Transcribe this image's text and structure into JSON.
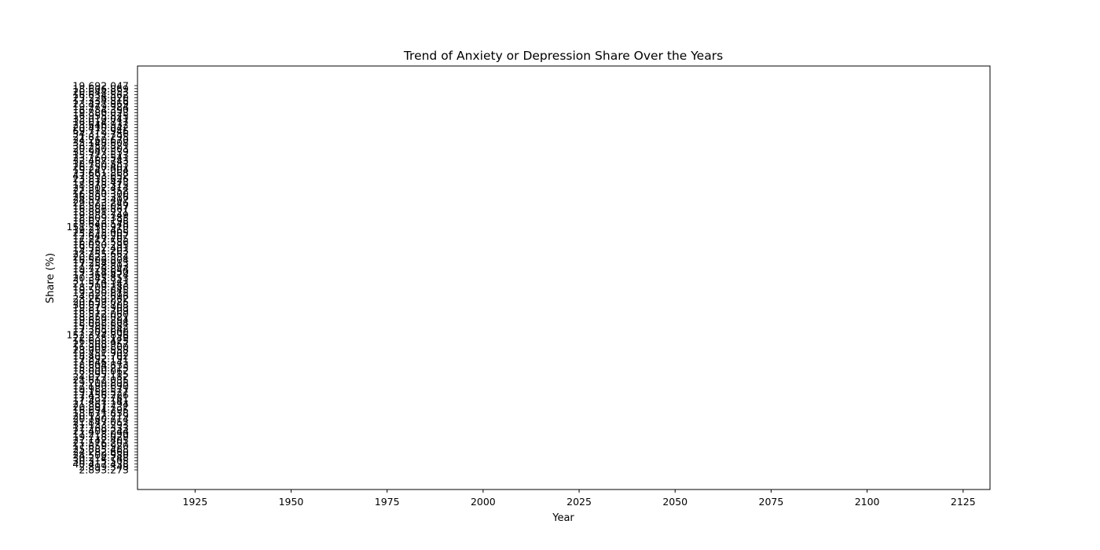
{
  "chart_data": {
    "type": "scatter",
    "title": "Trend of Anxiety or Depression Share Over the Years",
    "xlabel": "Year",
    "ylabel": "Share (%)",
    "xlim": [
      1910,
      2132
    ],
    "x_ticks": [
      "1925",
      "1950",
      "1975",
      "2000",
      "2025",
      "2050",
      "2075",
      "2100",
      "2125"
    ],
    "y_axis_kind": "categorical",
    "y_ticks_top_to_bottom": [
      "19.692.047",
      "18.606.869",
      "20.644.853",
      "16.634.562",
      "23.226.020",
      "17.334.816",
      "23.427.969",
      "19.279.924",
      "16.784.390",
      "19.880.023",
      "16.955.875",
      "33.010.041",
      "16.014.717",
      "23.646.932",
      "20.410.042",
      "69.772.946",
      "34.319.756",
      "21.817.295",
      "24.260.670",
      "35.148.608",
      "36.257.821",
      "20.280.303",
      "33.947.539",
      "15.773.513",
      "23.260.541",
      "32.467.743",
      "18.780.883",
      "26.250.401",
      "19.247.004",
      "23.661.868",
      "47.893.652",
      "23.818.626",
      "17.675.473",
      "18.878.375",
      "21.302.414",
      "22.815.352",
      "16.580.300",
      "26.883.316",
      "24.573.407",
      "29.023.246",
      "16.505.057",
      "16.886.867",
      "18.891.221",
      "19.888.749",
      "18.609.385",
      "16.023.198",
      "18.646.548",
      "151.250.910",
      "19.215.468",
      "25.825.005",
      "12.646.207",
      "17.217.705",
      "16.863.586",
      "16.020.295",
      "19.332.401",
      "14.751.203",
      "23.255.662",
      "20.823.334",
      "16.506.804",
      "17.254.913",
      "17.258.803",
      "19.726.844",
      "19.314.650",
      "17.369.474",
      "20.345.853",
      "31.524.341",
      "21.510.143",
      "18.709.286",
      "19.588.845",
      "19.320.815",
      "4.023.696",
      "23.269.262",
      "20.659.025",
      "30.078.708",
      "19.873.903",
      "16.613.709",
      "18.572.060",
      "18.859.021",
      "19.659.294",
      "18.068.804",
      "15.985.582",
      "17.365.842",
      "17.209.600",
      "152.374.896",
      "22.835.149",
      "16.608.425",
      "21.508.957",
      "16.909.800",
      "23.008.558",
      "19.451.902",
      "18.405.702",
      "17.892.191",
      "17.646.141",
      "18.604.833",
      "15.890.215",
      "18.000.062",
      "2.895.115",
      "24.027.182",
      "21.612.035",
      "19.209.895",
      "17.190.690",
      "19.988.571",
      "19.156.527",
      "17.456.226",
      "17.932.781",
      "17.497.141",
      "21.867.294",
      "20.897.732",
      "16.694.295",
      "18.671.858",
      "20.132.219",
      "20.760.714",
      "21.847.052",
      "31.133.293",
      "17.268.333",
      "21.409.244",
      "17.218.090",
      "19.718.029",
      "27.142.405",
      "21.576.201",
      "17.659.920",
      "25.885.488",
      "24.282.660",
      "24.500.980",
      "30.214.748",
      "30.315.505",
      "40.417.438",
      "2.899.348",
      "2.893.273"
    ],
    "series": [],
    "grid": false,
    "legend": "none"
  }
}
